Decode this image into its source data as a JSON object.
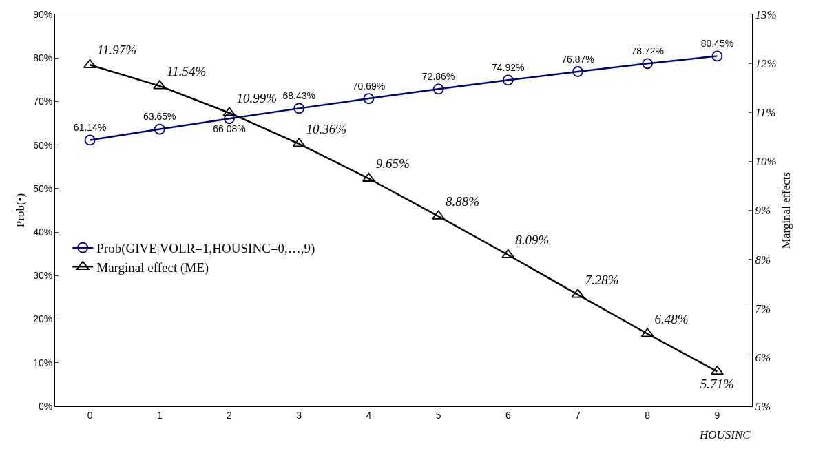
{
  "chart_data": {
    "type": "line",
    "categories": [
      "0",
      "1",
      "2",
      "3",
      "4",
      "5",
      "6",
      "7",
      "8",
      "9"
    ],
    "xlabel": "HOUSINC",
    "ylabel": "Prob(•)",
    "y2label": "Marginal effects",
    "ylim": [
      0,
      90
    ],
    "yticks": [
      {
        "value": 0,
        "label": "0%"
      },
      {
        "value": 10,
        "label": "10%"
      },
      {
        "value": 20,
        "label": "20%"
      },
      {
        "value": 30,
        "label": "30%"
      },
      {
        "value": 40,
        "label": "40%"
      },
      {
        "value": 50,
        "label": "50%"
      },
      {
        "value": 60,
        "label": "60%"
      },
      {
        "value": 70,
        "label": "70%"
      },
      {
        "value": 80,
        "label": "80%"
      },
      {
        "value": 90,
        "label": "90%"
      }
    ],
    "y2lim": [
      5,
      13
    ],
    "y2ticks": [
      {
        "value": 5,
        "label": "5%"
      },
      {
        "value": 6,
        "label": "6%"
      },
      {
        "value": 7,
        "label": "7%"
      },
      {
        "value": 8,
        "label": "8%"
      },
      {
        "value": 9,
        "label": "9%"
      },
      {
        "value": 10,
        "label": "10%"
      },
      {
        "value": 11,
        "label": "11%"
      },
      {
        "value": 12,
        "label": "12%"
      },
      {
        "value": 13,
        "label": "13%"
      }
    ],
    "series": [
      {
        "name": "Prob(GIVE|VOLR=1,HOUSINC=0,…,9)",
        "color": "#000080",
        "marker": "circle",
        "values": [
          61.14,
          63.65,
          66.08,
          68.43,
          70.69,
          72.86,
          74.92,
          76.87,
          78.72,
          80.45
        ],
        "value_labels": [
          "61.14%",
          "63.65%",
          "66.08%",
          "68.43%",
          "70.69%",
          "72.86%",
          "74.92%",
          "76.87%",
          "78.72%",
          "80.45%"
        ]
      },
      {
        "name": "Marginal effect (ME)",
        "color": "#000000",
        "marker": "triangle",
        "axis": "y2",
        "values": [
          11.97,
          11.54,
          10.99,
          10.36,
          9.65,
          8.88,
          8.09,
          7.28,
          6.48,
          5.71
        ],
        "value_labels": [
          "11.97%",
          "11.54%",
          "10.99%",
          "10.36%",
          "9.65%",
          "8.88%",
          "8.09%",
          "7.28%",
          "6.48%",
          "5.71%"
        ]
      }
    ],
    "legend": "left",
    "grid": false,
    "line_style": "solid"
  }
}
